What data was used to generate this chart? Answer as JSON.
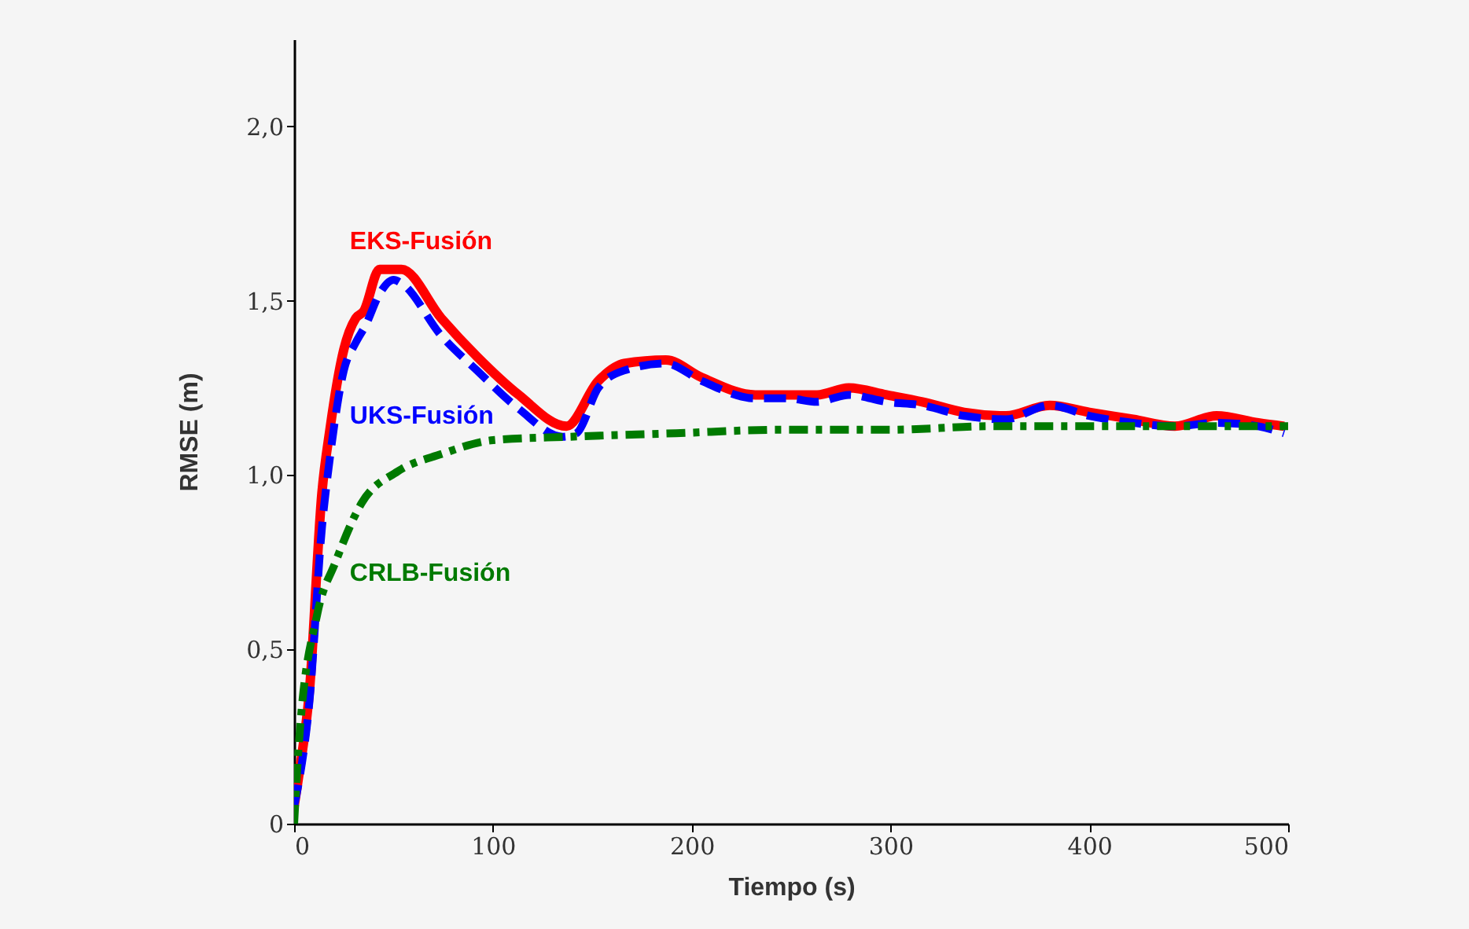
{
  "chart_data": {
    "type": "line",
    "xlabel": "Tiempo (s)",
    "ylabel": "RMSE (m)",
    "xlim": [
      0,
      500
    ],
    "xticks": [
      0,
      100,
      200,
      300,
      400,
      500
    ],
    "ylim": [
      0,
      2.25
    ],
    "yticks": [
      0,
      {
        "value": 0.5,
        "label": "0,5"
      },
      {
        "value": 1.0,
        "label": "1,0"
      },
      {
        "value": 1.5,
        "label": "1,5"
      },
      {
        "value": 2.0,
        "label": "2,0"
      }
    ],
    "grid": false,
    "marker": "none",
    "series": [
      {
        "name": "EKS-Fusión",
        "color": "#ff0000",
        "line_style": "solid",
        "x": [
          0,
          2.4,
          7.7,
          14,
          18,
          25,
          31,
          35,
          43,
          54,
          74,
          92,
          113,
          137,
          153,
          166,
          187,
          205,
          232,
          248,
          263,
          279,
          298,
          316,
          337,
          358,
          380,
          400,
          422,
          443,
          464,
          485,
          498
        ],
        "values": [
          0.05,
          0.14,
          0.38,
          0.95,
          1.13,
          1.36,
          1.45,
          1.47,
          1.59,
          1.59,
          1.45,
          1.34,
          1.23,
          1.14,
          1.27,
          1.32,
          1.33,
          1.28,
          1.23,
          1.23,
          1.23,
          1.25,
          1.23,
          1.21,
          1.18,
          1.17,
          1.2,
          1.18,
          1.16,
          1.14,
          1.17,
          1.15,
          1.14
        ]
      },
      {
        "name": "UKS-Fusión",
        "color": "#0000ff",
        "line_style": "dashed",
        "x": [
          0,
          2.4,
          7.7,
          14,
          18,
          25,
          31,
          36,
          43,
          50,
          54,
          74,
          92,
          113,
          135,
          142,
          153,
          166,
          187,
          205,
          232,
          248,
          263,
          279,
          298,
          316,
          337,
          358,
          380,
          400,
          422,
          443,
          464,
          485,
          498
        ],
        "values": [
          0.05,
          0.12,
          0.35,
          0.85,
          1.05,
          1.3,
          1.38,
          1.43,
          1.52,
          1.56,
          1.55,
          1.4,
          1.3,
          1.19,
          1.11,
          1.12,
          1.25,
          1.3,
          1.32,
          1.27,
          1.22,
          1.22,
          1.21,
          1.23,
          1.21,
          1.2,
          1.17,
          1.16,
          1.2,
          1.17,
          1.15,
          1.14,
          1.15,
          1.14,
          1.12
        ]
      },
      {
        "name": "CRLB-Fusión",
        "color": "#007a00",
        "line_style": "dotted",
        "x": [
          0,
          2.4,
          11.6,
          20.8,
          34,
          52,
          74,
          100,
          139,
          192,
          245,
          300,
          350,
          400,
          450,
          500
        ],
        "values": [
          0,
          0.23,
          0.6,
          0.75,
          0.92,
          1.01,
          1.06,
          1.1,
          1.11,
          1.12,
          1.13,
          1.13,
          1.14,
          1.14,
          1.14,
          1.14
        ]
      }
    ]
  }
}
